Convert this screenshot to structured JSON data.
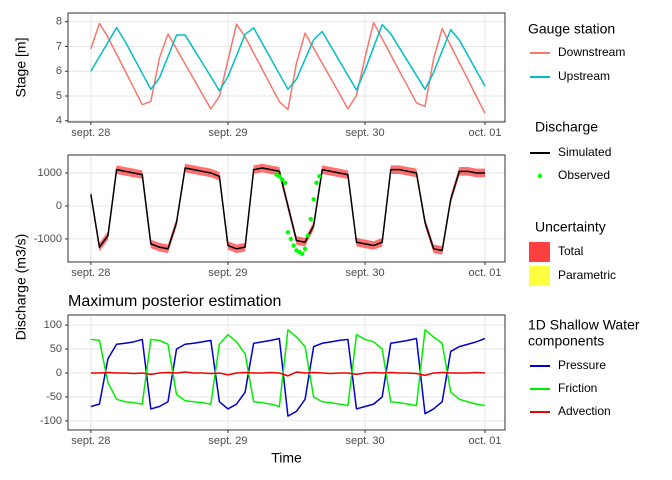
{
  "chart_data": [
    {
      "type": "line",
      "ylabel": "Stage [m]",
      "legend_title": "Gauge station",
      "x": [
        0,
        1.5,
        3,
        4.5,
        6,
        7.5,
        9,
        10.5,
        12,
        13.5,
        15,
        16.5,
        18,
        19.5,
        21,
        22.5,
        24,
        25.5,
        27,
        28.5,
        30,
        31.5,
        33,
        34.5,
        36,
        37.5,
        39,
        40.5,
        42,
        43.5,
        45,
        46.5,
        48,
        49.5,
        51,
        52.5,
        54,
        55.5,
        57,
        58.5,
        60,
        61.5,
        63,
        64.5,
        66,
        67.5,
        69
      ],
      "xlim": [
        -4,
        72.5
      ],
      "xticks": [
        {
          "value": 0,
          "label": "sept. 28"
        },
        {
          "value": 24,
          "label": "sept. 29"
        },
        {
          "value": 48,
          "label": "sept. 30"
        },
        {
          "value": 69,
          "label": "oct. 01"
        }
      ],
      "ylim": [
        3.95,
        8.35
      ],
      "yticks": [
        4,
        5,
        6,
        7,
        8
      ],
      "grid": true,
      "series": [
        {
          "name": "Downstream",
          "color": "#F8766D",
          "values": [
            6.9,
            7.93,
            7.37,
            6.69,
            6.01,
            5.33,
            4.65,
            4.78,
            6.53,
            7.5,
            6.9,
            6.29,
            5.69,
            5.08,
            4.48,
            4.98,
            6.44,
            7.9,
            7.39,
            6.73,
            6.08,
            5.42,
            4.77,
            4.45,
            6.33,
            7.54,
            6.93,
            6.32,
            5.71,
            5.1,
            4.48,
            5.02,
            6.56,
            7.96,
            7.31,
            6.66,
            6.01,
            5.37,
            4.72,
            4.58,
            6.5,
            7.72,
            7.03,
            6.35,
            5.67,
            4.98,
            4.3
          ]
        },
        {
          "name": "Upstream",
          "color": "#00BFC4",
          "values": [
            6.0,
            6.59,
            7.17,
            7.76,
            7.2,
            6.56,
            5.91,
            5.27,
            5.73,
            6.59,
            7.46,
            7.46,
            6.9,
            6.34,
            5.78,
            5.21,
            5.78,
            6.63,
            7.49,
            7.75,
            7.13,
            6.51,
            5.89,
            5.27,
            5.68,
            6.48,
            7.27,
            7.6,
            7.01,
            6.42,
            5.83,
            5.24,
            6.05,
            6.97,
            7.88,
            7.51,
            6.95,
            6.39,
            5.83,
            5.27,
            5.95,
            6.82,
            7.68,
            7.26,
            6.64,
            6.02,
            5.4
          ]
        }
      ]
    },
    {
      "type": "line",
      "ylabel": "Discharge (m3/s)",
      "legend_title": "Discharge",
      "x": [
        0,
        1.5,
        3,
        4.5,
        6,
        7.5,
        9,
        10.5,
        12,
        13.5,
        15,
        16.5,
        18,
        19.5,
        21,
        22.5,
        24,
        25.5,
        27,
        28.5,
        30,
        31.5,
        33,
        34.5,
        36,
        37.5,
        39,
        40.5,
        42,
        43.5,
        45,
        46.5,
        48,
        49.5,
        51,
        52.5,
        54,
        55.5,
        57,
        58.5,
        60,
        61.5,
        63,
        64.5,
        66,
        67.5,
        69
      ],
      "xlim": [
        -4,
        72.5
      ],
      "xticks": [
        {
          "value": 0,
          "label": "sept. 28"
        },
        {
          "value": 24,
          "label": "sept. 29"
        },
        {
          "value": 48,
          "label": "sept. 30"
        },
        {
          "value": 69,
          "label": "oct. 01"
        }
      ],
      "ylim": [
        -1700,
        1545
      ],
      "yticks": [
        -1000,
        0,
        1000
      ],
      "grid": true,
      "bands": {
        "title": "Uncertainty",
        "items": [
          {
            "name": "Total",
            "color": "#FF4040",
            "lower": [
              220,
              -1380,
              -1030,
              970,
              920,
              870,
              820,
              -1280,
              -1380,
              -1430,
              -630,
              1020,
              970,
              920,
              870,
              770,
              -1330,
              -1430,
              -1380,
              970,
              1020,
              970,
              920,
              -130,
              -1180,
              -1230,
              -730,
              970,
              920,
              870,
              820,
              -1230,
              -1280,
              -1330,
              -1230,
              970,
              970,
              920,
              870,
              -630,
              -1430,
              -1480,
              70,
              920,
              920,
              870,
              870
            ],
            "upper": [
              480,
              -1120,
              -770,
              1230,
              1180,
              1130,
              1080,
              -1020,
              -1120,
              -1170,
              -370,
              1280,
              1230,
              1180,
              1130,
              1030,
              -1070,
              -1170,
              -1120,
              1230,
              1280,
              1230,
              1180,
              130,
              -920,
              -970,
              -470,
              1230,
              1180,
              1130,
              1080,
              -970,
              -1020,
              -1070,
              -970,
              1230,
              1230,
              1180,
              1130,
              -370,
              -1170,
              -1220,
              330,
              1180,
              1180,
              1130,
              1130
            ]
          },
          {
            "name": "Parametric",
            "color": "#FFFF40"
          }
        ]
      },
      "series": [
        {
          "name": "Simulated",
          "color": "#000000",
          "values": [
            350,
            -1250,
            -900,
            1100,
            1050,
            1000,
            950,
            -1150,
            -1250,
            -1300,
            -500,
            1150,
            1100,
            1050,
            1000,
            900,
            -1200,
            -1300,
            -1250,
            1100,
            1150,
            1100,
            1050,
            0,
            -1050,
            -1100,
            -600,
            1100,
            1050,
            1000,
            950,
            -1100,
            -1150,
            -1200,
            -1100,
            1100,
            1100,
            1050,
            1000,
            -500,
            -1300,
            -1350,
            200,
            1050,
            1050,
            1000,
            1000
          ]
        },
        {
          "name": "Observed",
          "color": "#00FF00",
          "marker": "point",
          "x": [
            32.5,
            33,
            33.5,
            34,
            34.5,
            35,
            35.5,
            36,
            36.5,
            37,
            37.5,
            38,
            38.5,
            39,
            39.5,
            40
          ],
          "values": [
            950,
            900,
            800,
            700,
            -800,
            -1000,
            -1200,
            -1350,
            -1400,
            -1450,
            -1300,
            -900,
            -400,
            200,
            700,
            900
          ]
        }
      ]
    },
    {
      "type": "line",
      "title": "Maximum posterior estimation",
      "xlabel": "Time",
      "legend_title": [
        "1D Shallow Water",
        "components"
      ],
      "x": [
        0,
        1.5,
        3,
        4.5,
        6,
        7.5,
        9,
        10.5,
        12,
        13.5,
        15,
        16.5,
        18,
        19.5,
        21,
        22.5,
        24,
        25.5,
        27,
        28.5,
        30,
        31.5,
        33,
        34.5,
        36,
        37.5,
        39,
        40.5,
        42,
        43.5,
        45,
        46.5,
        48,
        49.5,
        51,
        52.5,
        54,
        55.5,
        57,
        58.5,
        60,
        61.5,
        63,
        64.5,
        66,
        67.5,
        69
      ],
      "xlim": [
        -4,
        72.5
      ],
      "xticks": [
        {
          "value": 0,
          "label": "sept. 28"
        },
        {
          "value": 24,
          "label": "sept. 29"
        },
        {
          "value": 48,
          "label": "sept. 30"
        },
        {
          "value": 69,
          "label": "oct. 01"
        }
      ],
      "ylim": [
        -119,
        121
      ],
      "yticks": [
        -100,
        -50,
        0,
        50,
        100
      ],
      "grid": true,
      "series": [
        {
          "name": "Pressure",
          "color": "#0000CD",
          "values": [
            -70,
            -65,
            30,
            60,
            62,
            65,
            70,
            -75,
            -70,
            -60,
            50,
            60,
            62,
            65,
            68,
            -60,
            -75,
            -65,
            -40,
            62,
            65,
            68,
            72,
            -90,
            -80,
            -55,
            55,
            62,
            65,
            68,
            70,
            -75,
            -70,
            -65,
            -50,
            62,
            65,
            68,
            72,
            -85,
            -75,
            -60,
            45,
            55,
            60,
            65,
            72
          ]
        },
        {
          "name": "Friction",
          "color": "#00EE00",
          "values": [
            70,
            68,
            -20,
            -55,
            -60,
            -62,
            -65,
            70,
            68,
            60,
            -45,
            -58,
            -60,
            -62,
            -65,
            60,
            80,
            65,
            40,
            -60,
            -62,
            -65,
            -70,
            90,
            75,
            55,
            -50,
            -60,
            -62,
            -65,
            -68,
            80,
            70,
            65,
            50,
            -60,
            -62,
            -65,
            -68,
            90,
            75,
            62,
            -40,
            -55,
            -60,
            -65,
            -68
          ]
        },
        {
          "name": "Advection",
          "color": "#EE0000",
          "values": [
            0,
            0,
            1,
            0,
            0,
            -1,
            0,
            -3,
            0,
            1,
            0,
            2,
            0,
            0,
            -1,
            0,
            -4,
            0,
            1,
            0,
            0,
            1,
            0,
            -6,
            2,
            0,
            1,
            0,
            -1,
            0,
            0,
            -3,
            0,
            1,
            0,
            1,
            0,
            0,
            -1,
            -5,
            0,
            1,
            0,
            0,
            0,
            1,
            0
          ]
        }
      ]
    }
  ]
}
